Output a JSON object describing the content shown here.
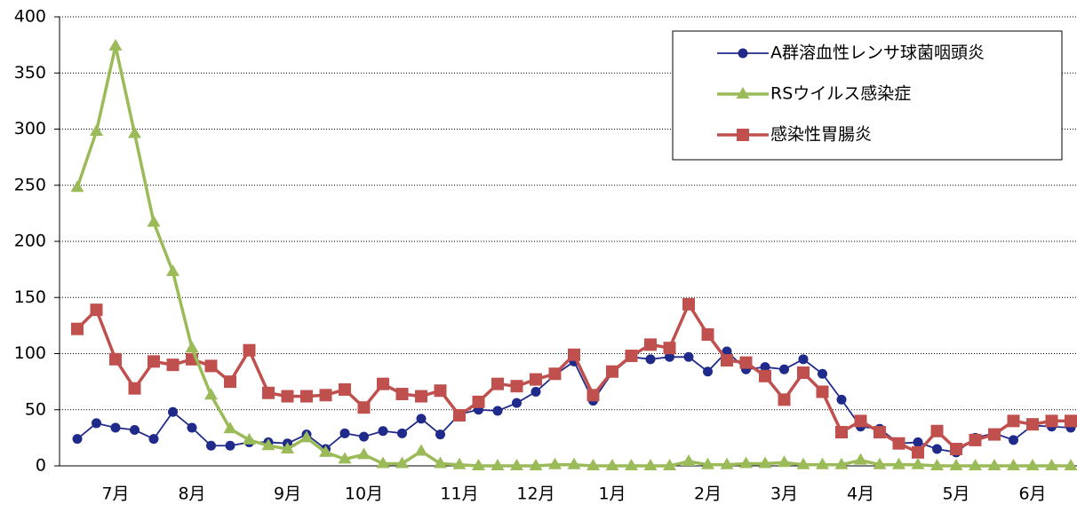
{
  "chart_data": {
    "type": "line",
    "categories": [
      null,
      null,
      "7月",
      null,
      null,
      null,
      "8月",
      null,
      null,
      null,
      null,
      "9月",
      null,
      null,
      null,
      "10月",
      null,
      null,
      null,
      null,
      "11月",
      null,
      null,
      null,
      "12月",
      null,
      null,
      null,
      "1月",
      null,
      null,
      null,
      null,
      "2月",
      null,
      null,
      null,
      "3月",
      null,
      null,
      null,
      "4月",
      null,
      null,
      null,
      null,
      "5月",
      null,
      null,
      null,
      "6月",
      null,
      null
    ],
    "series": [
      {
        "name": "A群溶血性レンサ球菌咽頭炎",
        "color": "#1f2a8a",
        "marker": "circle",
        "values": [
          24,
          38,
          34,
          32,
          24,
          48,
          34,
          18,
          18,
          21,
          21,
          20,
          28,
          15,
          29,
          26,
          31,
          29,
          42,
          28,
          46,
          50,
          49,
          56,
          66,
          81,
          93,
          58,
          83,
          97,
          95,
          97,
          97,
          84,
          102,
          86,
          88,
          86,
          95,
          82,
          59,
          35,
          33,
          20,
          21,
          15,
          12,
          25,
          29,
          23,
          36,
          35,
          34
        ]
      },
      {
        "name": "RSウイルス感染症",
        "color": "#9bbb59",
        "marker": "triangle",
        "values": [
          248,
          298,
          374,
          296,
          217,
          173,
          105,
          63,
          33,
          23,
          18,
          15,
          25,
          12,
          6,
          10,
          2,
          2,
          13,
          2,
          1,
          0,
          0,
          0,
          0,
          1,
          1,
          0,
          0,
          0,
          0,
          0,
          4,
          1,
          1,
          2,
          2,
          3,
          1,
          1,
          1,
          5,
          1,
          1,
          1,
          0,
          0,
          0,
          0,
          0,
          0,
          0,
          0
        ]
      },
      {
        "name": "感染性胃腸炎",
        "color": "#c0504d",
        "marker": "square",
        "values": [
          122,
          139,
          95,
          69,
          93,
          90,
          95,
          89,
          75,
          103,
          65,
          62,
          62,
          63,
          68,
          52,
          73,
          64,
          62,
          67,
          45,
          57,
          73,
          71,
          77,
          82,
          99,
          63,
          84,
          98,
          108,
          105,
          144,
          117,
          94,
          92,
          80,
          59,
          83,
          66,
          30,
          40,
          30,
          20,
          12,
          31,
          15,
          23,
          28,
          40,
          37,
          40,
          40
        ]
      }
    ],
    "ylim": [
      0,
      400
    ],
    "yticks": [
      0,
      50,
      100,
      150,
      200,
      250,
      300,
      350,
      400
    ],
    "grid": true,
    "legend": "upper right"
  }
}
